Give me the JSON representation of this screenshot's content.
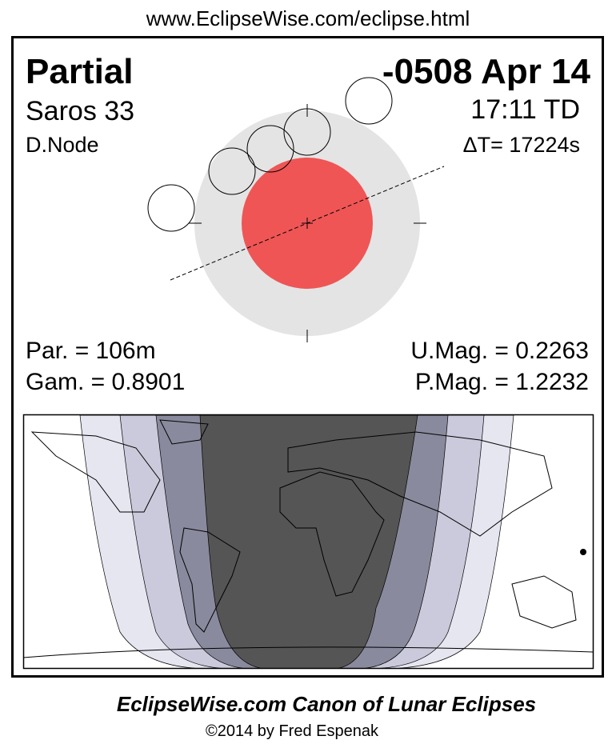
{
  "header": {
    "url": "www.EclipseWise.com/eclipse.html"
  },
  "eclipse": {
    "type": "Partial",
    "date": "-0508 Apr 14",
    "saros": "Saros  33",
    "time": "17:11 TD",
    "node": "D.Node",
    "delta_t": "ΔT=  17224s",
    "duration": "Par. = 106m",
    "gamma": "Gam. = 0.8901",
    "umbral_magnitude": "U.Mag. = 0.2263",
    "penumbral_magnitude": "P.Mag. = 1.2232"
  },
  "footer": {
    "title": "EclipseWise.com Canon of Lunar Eclipses",
    "credit": "©2014 by Fred Espenak"
  }
}
